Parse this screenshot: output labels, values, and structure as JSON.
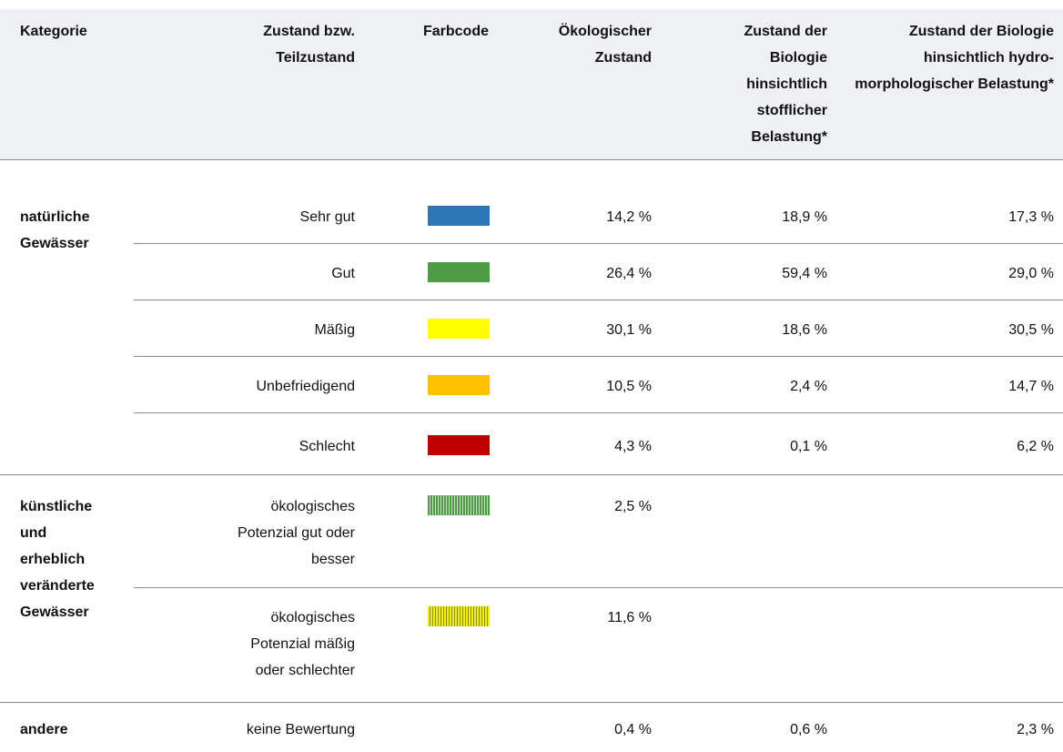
{
  "table": {
    "header": [
      "Kategorie",
      "Zustand bzw. Teilzustand",
      "Farbcode",
      "Ökologischer Zustand",
      "Zustand der Biologie hinsichtlich stofflicher Belastung*",
      "Zustand der Biologie hinsichtlich hydro-morphologischer Belastung*"
    ],
    "groups": [
      {
        "category": "natürliche Gewässer",
        "rows": [
          {
            "state": "Sehr gut",
            "color": "#2e75b6",
            "values": [
              "14,2 %",
              "18,9 %",
              "17,3 %"
            ]
          },
          {
            "state": "Gut",
            "color": "#4e9a45",
            "values": [
              "26,4 %",
              "59,4 %",
              "29,0 %"
            ]
          },
          {
            "state": "Mäßig",
            "color": "#ffff00",
            "values": [
              "30,1 %",
              "18,6 %",
              "30,5 %"
            ]
          },
          {
            "state": "Unbefriedigend",
            "color": "#ffc000",
            "values": [
              "10,5 %",
              "2,4 %",
              "14,7 %"
            ]
          },
          {
            "state": "Schlecht",
            "color": "#c00000",
            "values": [
              "4,3 %",
              "0,1 %",
              "6,2 %"
            ]
          }
        ]
      },
      {
        "category": "künstliche und erheblich veränderte Gewässer",
        "rows": [
          {
            "state": "ökologisches Potenzial gut oder besser",
            "color": "#4e9a45",
            "stripes": "#c9dfc4",
            "values": [
              "2,5 %"
            ]
          },
          {
            "state": "ökologisches Potenzial mäßig oder schlechter",
            "color": "#f2f200",
            "stripes": "#8a8a2a",
            "values": [
              "11,6 %"
            ]
          }
        ]
      },
      {
        "category": "andere",
        "rows": [
          {
            "state": "keine Bewertung",
            "values": [
              "0,4 %",
              "0,6 %",
              "2,3 %"
            ]
          }
        ]
      }
    ]
  }
}
